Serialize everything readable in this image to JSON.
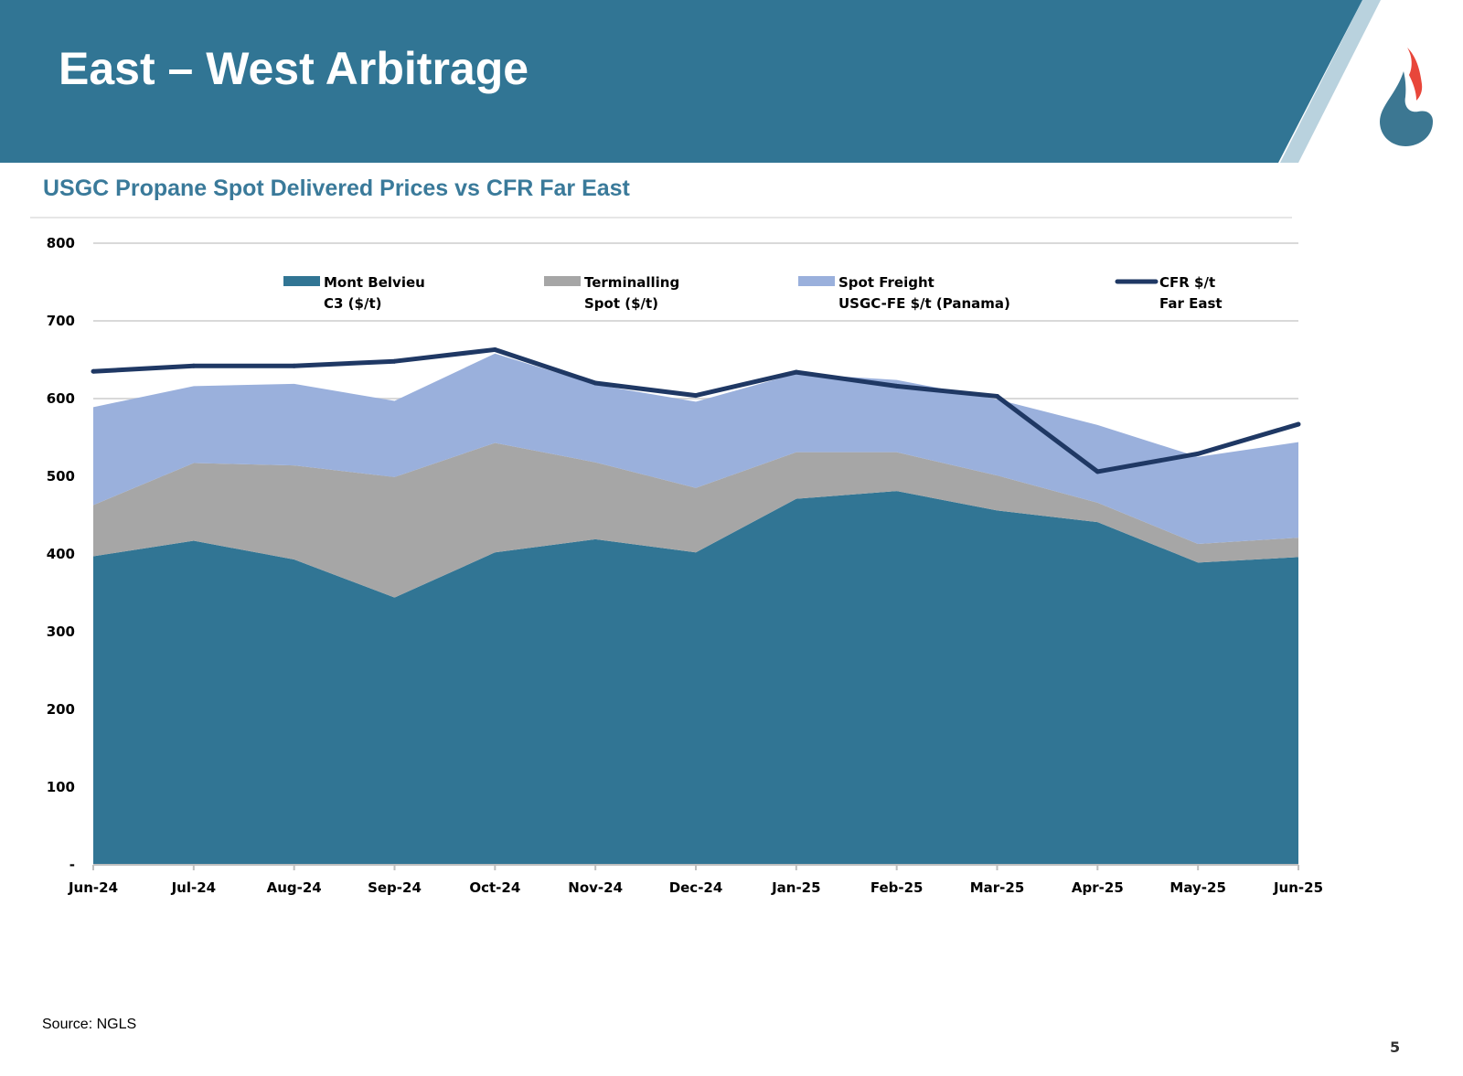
{
  "slide": {
    "title": "East – West Arbitrage",
    "subtitle": "USGC Propane Spot Delivered Prices vs CFR Far East",
    "source": "Source: NGLS",
    "page_number": "5"
  },
  "colors": {
    "banner": "#317594",
    "banner_accent": "#b9d2de",
    "mont_belvieu": "#317594",
    "terminalling": "#a6a6a6",
    "spot_freight": "#9ab0dc",
    "cfr_line": "#1f3864",
    "logo_flame": "#e8463a",
    "logo_drop": "#3c7792"
  },
  "chart_data": {
    "type": "area",
    "stacked": true,
    "title": "USGC Propane Spot Delivered Prices vs CFR Far East",
    "categories": [
      "Jun-24",
      "Jul-24",
      "Aug-24",
      "Sep-24",
      "Oct-24",
      "Nov-24",
      "Dec-24",
      "Jan-25",
      "Feb-25",
      "Mar-25",
      "Apr-25",
      "May-25",
      "Jun-25"
    ],
    "ylim": [
      0,
      800
    ],
    "yticks": [
      0,
      100,
      200,
      300,
      400,
      500,
      600,
      700,
      800
    ],
    "ytick_labels": [
      "-",
      "100",
      "200",
      "300",
      "400",
      "500",
      "600",
      "700",
      "800"
    ],
    "grid": true,
    "legend_position": "top",
    "series": [
      {
        "name": "Mont Belvieu C3 ($/t)",
        "legend_line1": "Mont Belvieu",
        "legend_line2": "C3 ($/t)",
        "kind": "area",
        "values": [
          397,
          417,
          393,
          344,
          402,
          419,
          402,
          471,
          481,
          456,
          441,
          389,
          396
        ]
      },
      {
        "name": "Terminalling Spot ($/t)",
        "legend_line1": "Terminalling",
        "legend_line2": "Spot ($/t)",
        "kind": "area",
        "values": [
          66,
          100,
          121,
          155,
          141,
          99,
          83,
          60,
          50,
          45,
          25,
          24,
          25
        ]
      },
      {
        "name": "Spot Freight USGC-FE $/t (Panama)",
        "legend_line1": "Spot Freight",
        "legend_line2": "USGC-FE $/t (Panama)",
        "kind": "area",
        "values": [
          126,
          99,
          105,
          98,
          115,
          100,
          111,
          101,
          93,
          98,
          100,
          112,
          123
        ]
      },
      {
        "name": "CFR $/t Far East",
        "legend_line1": "CFR $/t",
        "legend_line2": "Far East",
        "kind": "line",
        "values": [
          635,
          642,
          642,
          648,
          663,
          620,
          604,
          634,
          616,
          603,
          506,
          529,
          567
        ]
      }
    ]
  }
}
